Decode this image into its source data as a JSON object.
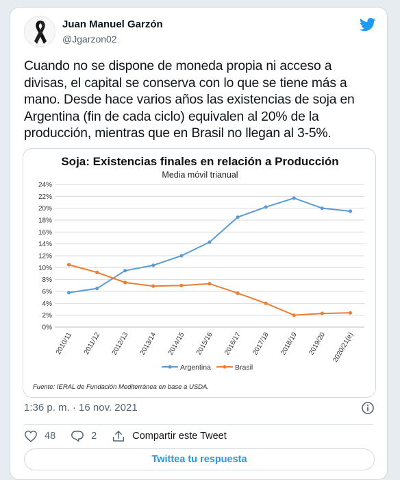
{
  "tweet": {
    "author_name": "Juan Manuel Garzón",
    "author_handle": "@Jgarzon02",
    "text": "Cuando no se dispone de moneda propia ni acceso a\ndivisas, el capital se conserva con lo que se tiene más a\nmano. Desde hace varios años las existencias de soja en\nArgentina (fin de cada ciclo) equivalen al 20% de la\nproducción, mientras que en Brasil no llegan al 3-5%.",
    "timestamp": "1:36 p. m. · 16 nov. 2021",
    "likes": "48",
    "replies": "2",
    "share_label": "Compartir este Tweet",
    "reply_button_label": "Twittea tu respuesta"
  },
  "colors": {
    "twitter_blue": "#1d9bf0",
    "argentina": "#5b9bd5",
    "brasil": "#ed7d31"
  },
  "icons": [
    "black-ribbon-icon",
    "twitter-bird-icon",
    "info-icon",
    "heart-icon",
    "reply-icon",
    "share-icon"
  ],
  "chart_data": {
    "type": "line",
    "title": "Soja: Existencias finales en relación a Producción",
    "subtitle": "Media móvil trianual",
    "categories": [
      "2010/11",
      "2011/12",
      "2012/13",
      "2013/14",
      "2014/15",
      "2015/16",
      "2016/17",
      "2017/18",
      "2018/19",
      "2019/20",
      "2020/21(e)"
    ],
    "series": [
      {
        "name": "Argentina",
        "values": [
          5.8,
          6.5,
          9.5,
          10.4,
          12.0,
          14.3,
          18.5,
          20.2,
          21.7,
          20.0,
          19.5
        ]
      },
      {
        "name": "Brasil",
        "values": [
          10.5,
          9.2,
          7.5,
          6.9,
          7.0,
          7.3,
          5.7,
          4.0,
          2.0,
          2.3,
          2.4
        ]
      }
    ],
    "ylim": [
      0,
      24
    ],
    "ytick_labels": [
      "0%",
      "2%",
      "4%",
      "6%",
      "8%",
      "10%",
      "12%",
      "14%",
      "16%",
      "18%",
      "20%",
      "22%",
      "24%"
    ],
    "grid": true,
    "legend_position": "bottom",
    "source_note": "Fuente: IERAL de Fundación Mediterránea en base a USDA."
  }
}
